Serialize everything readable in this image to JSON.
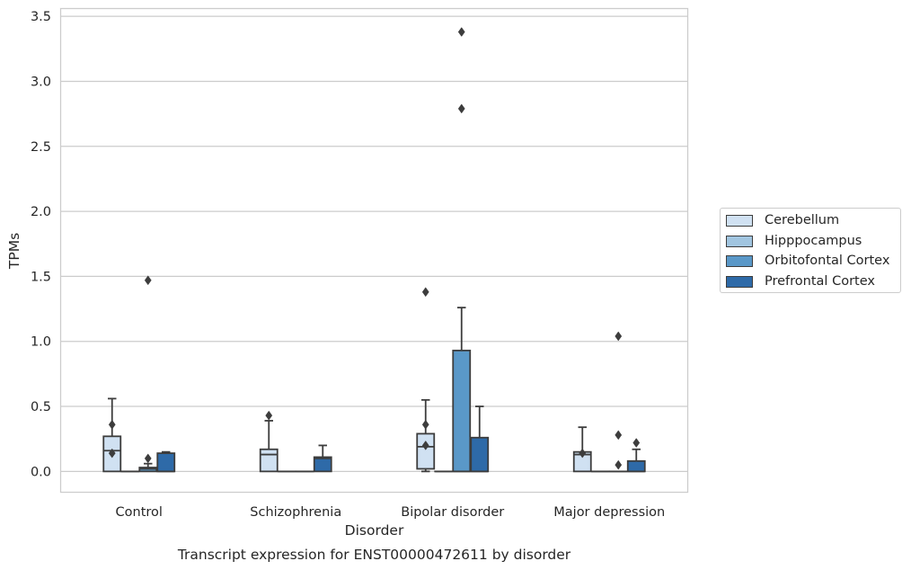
{
  "chart_data": {
    "type": "box",
    "title": "Transcript expression for ENST00000472611 by disorder",
    "xlabel": "Disorder",
    "ylabel": "TPMs",
    "ylim": [
      -0.16,
      3.56
    ],
    "yticks": [
      "0.0",
      "0.5",
      "1.0",
      "1.5",
      "2.0",
      "2.5",
      "3.0",
      "3.5"
    ],
    "grid": true,
    "legend_placement": "right",
    "categories": [
      "Control",
      "Schizophrenia",
      "Bipolar disorder",
      "Major depression"
    ],
    "series": [
      {
        "name": "Cerebellum",
        "color": "#d0e1f2",
        "boxes": [
          {
            "q1": 0.0,
            "median": 0.16,
            "q3": 0.27,
            "whisker_low": 0.0,
            "whisker_high": 0.56,
            "outliers": [
              0.36,
              0.14
            ]
          },
          {
            "q1": 0.0,
            "median": 0.13,
            "q3": 0.17,
            "whisker_low": 0.0,
            "whisker_high": 0.39,
            "outliers": [
              0.43
            ]
          },
          {
            "q1": 0.02,
            "median": 0.19,
            "q3": 0.29,
            "whisker_low": 0.0,
            "whisker_high": 0.55,
            "outliers": [
              1.38,
              0.36,
              0.2
            ]
          },
          {
            "q1": 0.0,
            "median": 0.13,
            "q3": 0.15,
            "whisker_low": 0.0,
            "whisker_high": 0.34,
            "outliers": [
              0.14
            ]
          }
        ]
      },
      {
        "name": "Hipppocampus",
        "color": "#a1c5e0",
        "boxes": [
          {
            "q1": 0.0,
            "median": 0.0,
            "q3": 0.0,
            "whisker_low": 0.0,
            "whisker_high": 0.0,
            "outliers": []
          },
          {
            "q1": 0.0,
            "median": 0.0,
            "q3": 0.0,
            "whisker_low": 0.0,
            "whisker_high": 0.0,
            "outliers": []
          },
          {
            "q1": 0.0,
            "median": 0.0,
            "q3": 0.0,
            "whisker_low": 0.0,
            "whisker_high": 0.0,
            "outliers": []
          },
          {
            "q1": 0.0,
            "median": 0.0,
            "q3": 0.0,
            "whisker_low": 0.0,
            "whisker_high": 0.0,
            "outliers": []
          }
        ]
      },
      {
        "name": "Orbitofontal Cortex",
        "color": "#5a98c8",
        "boxes": [
          {
            "q1": 0.0,
            "median": 0.02,
            "q3": 0.03,
            "whisker_low": 0.0,
            "whisker_high": 0.06,
            "outliers": [
              1.47,
              0.1
            ]
          },
          {
            "q1": 0.0,
            "median": 0.0,
            "q3": 0.0,
            "whisker_low": 0.0,
            "whisker_high": 0.0,
            "outliers": []
          },
          {
            "q1": 0.0,
            "median": 0.0,
            "q3": 0.93,
            "whisker_low": 0.0,
            "whisker_high": 1.26,
            "outliers": [
              3.38,
              2.79
            ]
          },
          {
            "q1": 0.0,
            "median": 0.0,
            "q3": 0.0,
            "whisker_low": 0.0,
            "whisker_high": 0.0,
            "outliers": [
              1.04,
              0.28,
              0.05
            ]
          }
        ]
      },
      {
        "name": "Prefrontal Cortex",
        "color": "#2e6aa8",
        "boxes": [
          {
            "q1": 0.0,
            "median": 0.0,
            "q3": 0.14,
            "whisker_low": 0.0,
            "whisker_high": 0.15,
            "outliers": []
          },
          {
            "q1": 0.0,
            "median": 0.1,
            "q3": 0.11,
            "whisker_low": 0.0,
            "whisker_high": 0.2,
            "outliers": []
          },
          {
            "q1": 0.0,
            "median": 0.0,
            "q3": 0.26,
            "whisker_low": 0.0,
            "whisker_high": 0.5,
            "outliers": []
          },
          {
            "q1": 0.0,
            "median": 0.0,
            "q3": 0.08,
            "whisker_low": 0.0,
            "whisker_high": 0.17,
            "outliers": [
              0.22
            ]
          }
        ]
      }
    ]
  }
}
